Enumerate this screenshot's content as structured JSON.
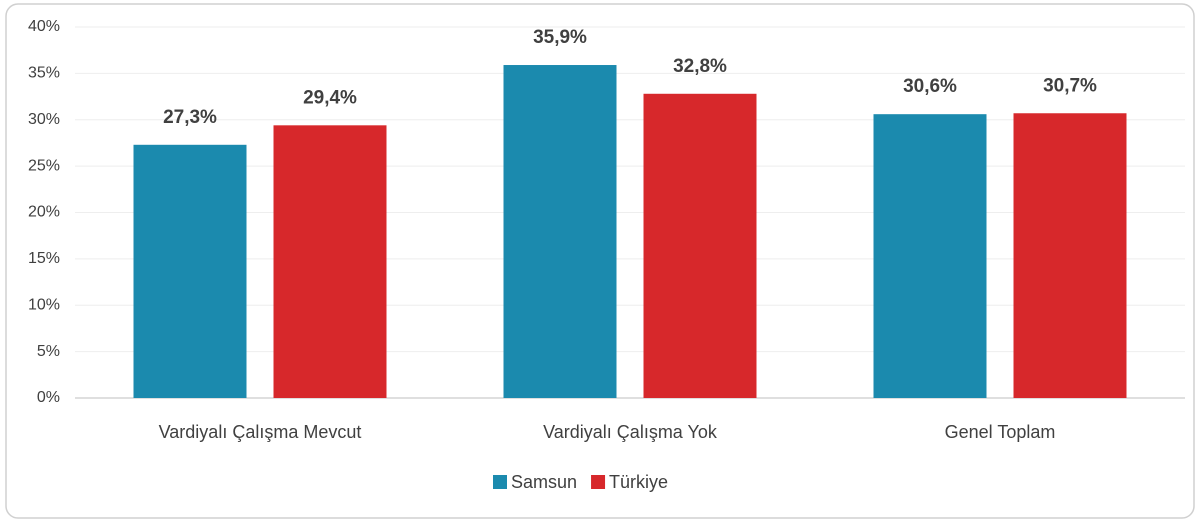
{
  "chart_data": {
    "type": "bar",
    "categories": [
      "Vardiyalı Çalışma Mevcut",
      "Vardiyalı Çalışma Yok",
      "Genel Toplam"
    ],
    "series": [
      {
        "name": "Samsun",
        "color": "#1b8aae",
        "values": [
          27.3,
          35.9,
          30.6
        ],
        "value_labels": [
          "27,3%",
          "35,9%",
          "30,6%"
        ]
      },
      {
        "name": "Türkiye",
        "color": "#d7282b",
        "values": [
          29.4,
          32.8,
          30.7
        ],
        "value_labels": [
          "29,4%",
          "32,8%",
          "30,7%"
        ]
      }
    ],
    "ylim": [
      0,
      40
    ],
    "yticks": [
      {
        "value": 0,
        "label": "0%"
      },
      {
        "value": 5,
        "label": "5%"
      },
      {
        "value": 10,
        "label": "10%"
      },
      {
        "value": 15,
        "label": "15%"
      },
      {
        "value": 20,
        "label": "20%"
      },
      {
        "value": 25,
        "label": "25%"
      },
      {
        "value": 30,
        "label": "30%"
      },
      {
        "value": 35,
        "label": "35%"
      },
      {
        "value": 40,
        "label": "40%"
      }
    ],
    "grid": true,
    "legend": "bottom"
  }
}
